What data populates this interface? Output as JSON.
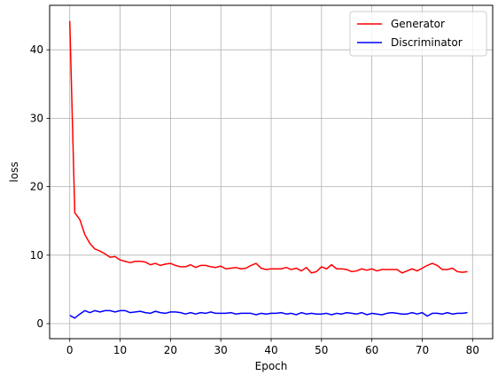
{
  "chart_data": {
    "type": "line",
    "title": "",
    "xlabel": "Epoch",
    "ylabel": "loss",
    "xlim": [
      -4,
      84
    ],
    "ylim": [
      -2.2,
      46.5
    ],
    "xticks": [
      0,
      10,
      20,
      30,
      40,
      50,
      60,
      70,
      80
    ],
    "yticks": [
      0,
      10,
      20,
      30,
      40
    ],
    "grid": true,
    "legend_position": "top-right",
    "x": [
      0,
      1,
      2,
      3,
      4,
      5,
      6,
      7,
      8,
      9,
      10,
      11,
      12,
      13,
      14,
      15,
      16,
      17,
      18,
      19,
      20,
      21,
      22,
      23,
      24,
      25,
      26,
      27,
      28,
      29,
      30,
      31,
      32,
      33,
      34,
      35,
      36,
      37,
      38,
      39,
      40,
      41,
      42,
      43,
      44,
      45,
      46,
      47,
      48,
      49,
      50,
      51,
      52,
      53,
      54,
      55,
      56,
      57,
      58,
      59,
      60,
      61,
      62,
      63,
      64,
      65,
      66,
      67,
      68,
      69,
      70,
      71,
      72,
      73,
      74,
      75,
      76,
      77,
      78,
      79
    ],
    "series": [
      {
        "name": "Generator",
        "color": "#ff0000",
        "values": [
          44.2,
          16.2,
          15.2,
          13.0,
          11.7,
          10.9,
          10.6,
          10.2,
          9.7,
          9.8,
          9.3,
          9.1,
          8.9,
          9.1,
          9.1,
          9.0,
          8.6,
          8.8,
          8.5,
          8.7,
          8.8,
          8.5,
          8.3,
          8.3,
          8.6,
          8.2,
          8.5,
          8.5,
          8.3,
          8.2,
          8.4,
          8.0,
          8.1,
          8.2,
          8.0,
          8.1,
          8.5,
          8.8,
          8.1,
          7.9,
          8.0,
          8.0,
          8.0,
          8.2,
          7.9,
          8.1,
          7.7,
          8.2,
          7.4,
          7.6,
          8.3,
          8.0,
          8.6,
          8.0,
          8.0,
          7.9,
          7.6,
          7.7,
          8.0,
          7.8,
          8.0,
          7.7,
          7.9,
          7.9,
          7.9,
          7.9,
          7.4,
          7.7,
          8.0,
          7.7,
          8.1,
          8.5,
          8.8,
          8.5,
          7.9,
          7.9,
          8.1,
          7.6,
          7.5,
          7.6
        ]
      },
      {
        "name": "Discriminator",
        "color": "#0000ff",
        "values": [
          1.2,
          0.8,
          1.4,
          1.9,
          1.6,
          1.9,
          1.7,
          1.9,
          1.9,
          1.7,
          1.9,
          1.9,
          1.6,
          1.7,
          1.8,
          1.6,
          1.5,
          1.8,
          1.6,
          1.5,
          1.7,
          1.7,
          1.6,
          1.4,
          1.6,
          1.4,
          1.6,
          1.5,
          1.7,
          1.5,
          1.5,
          1.5,
          1.6,
          1.4,
          1.5,
          1.5,
          1.5,
          1.3,
          1.5,
          1.4,
          1.5,
          1.5,
          1.6,
          1.4,
          1.5,
          1.3,
          1.6,
          1.4,
          1.5,
          1.4,
          1.4,
          1.5,
          1.3,
          1.5,
          1.4,
          1.6,
          1.5,
          1.4,
          1.6,
          1.3,
          1.5,
          1.4,
          1.3,
          1.5,
          1.6,
          1.5,
          1.4,
          1.4,
          1.6,
          1.4,
          1.6,
          1.1,
          1.5,
          1.5,
          1.4,
          1.6,
          1.4,
          1.5,
          1.5,
          1.6
        ]
      }
    ]
  }
}
